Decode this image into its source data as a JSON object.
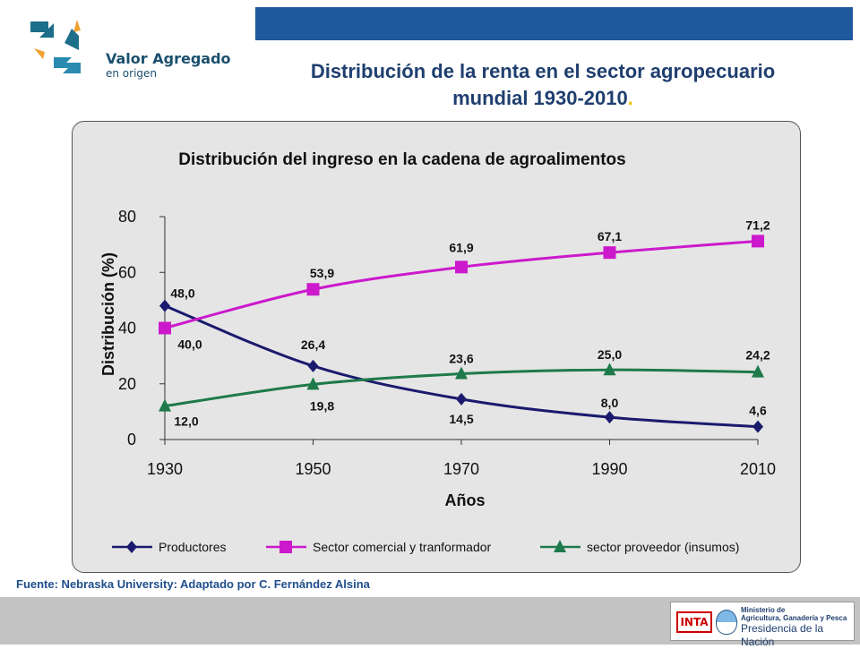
{
  "logo": {
    "name": "Valor Agregado",
    "sub": "en origen"
  },
  "slide": {
    "title_line1": "Distribución de la renta en el sector agropecuario",
    "title_line2": "mundial 1930-2010",
    "title_dot": ".",
    "source": "Fuente: Nebraska University: Adaptado por C. Fernández Alsina"
  },
  "footer": {
    "inta": "INTA",
    "ministry_line1": "Ministerio de",
    "ministry_line2": "Agricultura, Ganadería y Pesca",
    "ministry_line3": "Presidencia de la Nación"
  },
  "chart_data": {
    "type": "line",
    "title": "Distribución del ingreso en la cadena de agroalimentos",
    "xlabel": "Años",
    "ylabel": "Distribución (%)",
    "x": [
      1930,
      1950,
      1970,
      1990,
      2010
    ],
    "x_tick_labels": [
      "1930",
      "1950",
      "1970",
      "1990",
      "2010"
    ],
    "y_tick_labels": [
      "0",
      "20",
      "40",
      "60",
      "80"
    ],
    "ylim": [
      0,
      80
    ],
    "grid": false,
    "legend_position": "bottom",
    "series": [
      {
        "name": "Productores",
        "values": [
          48.0,
          26.4,
          14.5,
          8.0,
          4.6
        ],
        "labels": [
          "48,0",
          "26,4",
          "14,5",
          "8,0",
          "4,6"
        ],
        "color": "#1a1a6e",
        "marker": "diamond"
      },
      {
        "name": "Sector comercial y tranformador",
        "values": [
          40.0,
          53.9,
          61.9,
          67.1,
          71.2
        ],
        "labels": [
          "40,0",
          "53,9",
          "61,9",
          "67,1",
          "71,2"
        ],
        "color": "#cc19cc",
        "marker": "square"
      },
      {
        "name": "sector proveedor (insumos)",
        "values": [
          12.0,
          19.8,
          23.6,
          25.0,
          24.2
        ],
        "labels": [
          "12,0",
          "19,8",
          "23,6",
          "25,0",
          "24,2"
        ],
        "color": "#1e7a4a",
        "marker": "triangle"
      }
    ]
  }
}
